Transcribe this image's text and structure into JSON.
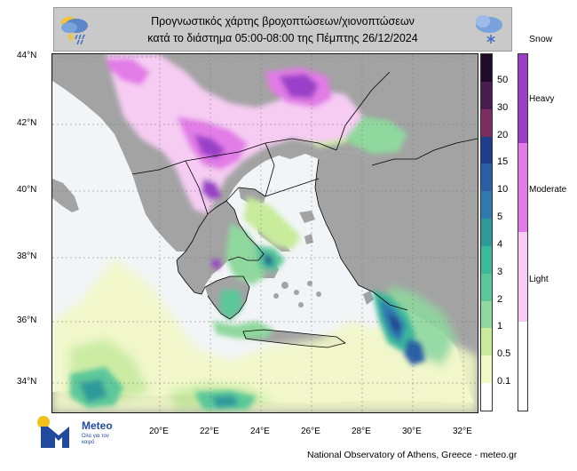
{
  "title": {
    "line1": "Προγνωστικός χάρτης βροχοπτώσεων/χιονοπτώσεων",
    "line2": "κατά το διάστημα 05:00-08:00 της Πέμπτης 26/12/2024"
  },
  "icons": {
    "left": "rain-cloud-lightning-icon",
    "right": "snow-cloud-icon"
  },
  "axes": {
    "lat_labels": [
      "44°N",
      "42°N",
      "40°N",
      "38°N",
      "36°N",
      "34°N"
    ],
    "lon_labels": [
      "20°E",
      "22°E",
      "24°E",
      "26°E",
      "28°E",
      "30°E",
      "32°E"
    ]
  },
  "rain_legend": {
    "levels": [
      "50",
      "30",
      "20",
      "15",
      "10",
      "5",
      "4",
      "3",
      "2",
      "1",
      "0.5",
      "0.1"
    ],
    "colors": [
      "#200b2a",
      "#4a1d50",
      "#7a2d5e",
      "#1e3d8a",
      "#2a5fa5",
      "#2f7bb0",
      "#2f9a9a",
      "#3cb89a",
      "#5cc89a",
      "#8fd89e",
      "#c8ec9c",
      "#f1f8c6",
      "#ffffff"
    ]
  },
  "snow_legend": {
    "title": "Snow",
    "labels": [
      "Heavy",
      "Moderate",
      "Light"
    ],
    "colors": [
      "#9a3fc8",
      "#e27be6",
      "#f6ccf3"
    ]
  },
  "colors": {
    "land": "#a3a3a3",
    "sea": "#f2f5f7"
  },
  "logo": {
    "name": "Meteo",
    "tagline": "Όλα για τον καιρό"
  },
  "footer": "National Observatory of Athens, Greece - meteo.gr"
}
